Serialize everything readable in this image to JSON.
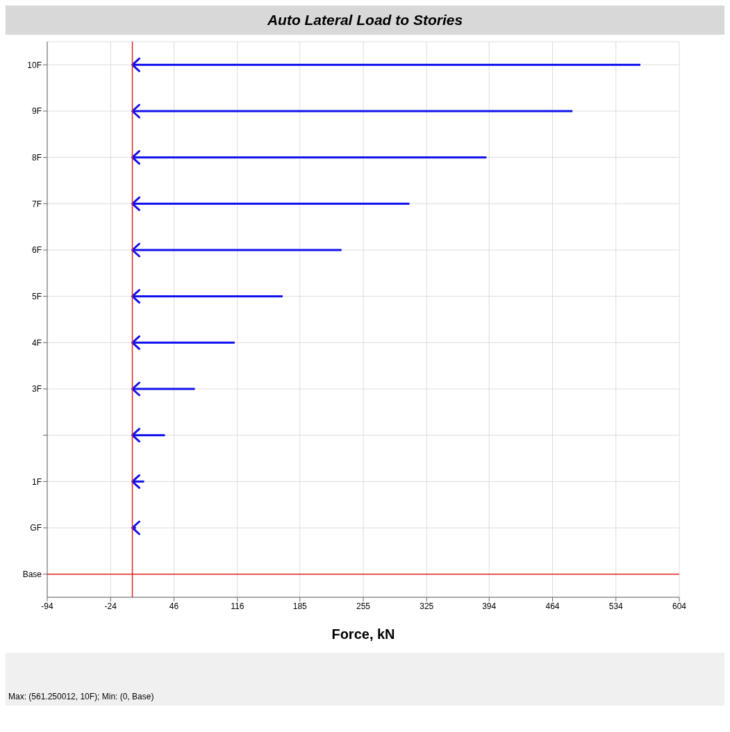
{
  "chart_data": {
    "type": "bar",
    "orientation": "horizontal",
    "title": "Auto Lateral Load to Stories",
    "xlabel": "Force, kN",
    "categories": [
      "10F",
      "9F",
      "8F",
      "7F",
      "6F",
      "5F",
      "4F",
      "3F",
      null,
      "1F",
      "GF",
      "Base"
    ],
    "values": [
      561,
      486,
      391,
      306,
      231,
      166,
      113,
      69,
      36,
      13,
      4,
      0
    ],
    "color": "#1010ee",
    "xlim": [
      -94,
      604
    ],
    "xticks": [
      -94,
      -24,
      46,
      116,
      185,
      255,
      325,
      394,
      464,
      534,
      604
    ],
    "grid": true,
    "ref_lines": [
      {
        "axis": "x",
        "value": 0,
        "color": "#e02020"
      },
      {
        "axis": "y",
        "value": "Base",
        "color": "#e02020"
      }
    ],
    "annotations": [
      "Max: (561.250012, 10F);   Min: (0, Base)"
    ]
  }
}
